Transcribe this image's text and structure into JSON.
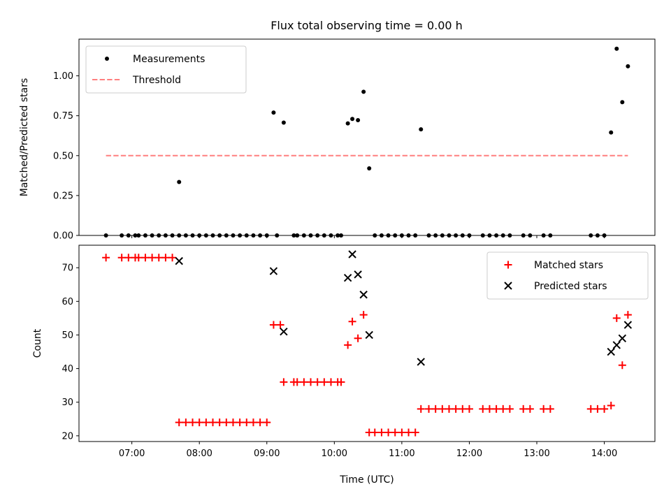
{
  "title": "Flux total observing time = 0.00 h",
  "chart_data": [
    {
      "type": "scatter",
      "ylabel": "Matched/Predicted stars",
      "xlim": [
        "06:13",
        "14:45"
      ],
      "ylim": [
        0,
        1.23
      ],
      "yticks": [
        "0.00",
        "0.25",
        "0.50",
        "0.75",
        "1.00"
      ],
      "legend": {
        "position": "top-left",
        "entries": [
          "Measurements",
          "Threshold"
        ]
      },
      "series": [
        {
          "name": "Measurements",
          "color": "#000000",
          "marker": "dot",
          "points": [
            [
              "06:37",
              0
            ],
            [
              "06:51",
              0
            ],
            [
              "06:57",
              0
            ],
            [
              "07:03",
              0
            ],
            [
              "07:06",
              0
            ],
            [
              "07:12",
              0
            ],
            [
              "07:18",
              0
            ],
            [
              "07:24",
              0
            ],
            [
              "07:30",
              0
            ],
            [
              "07:36",
              0
            ],
            [
              "07:42",
              0
            ],
            [
              "07:42",
              0.335
            ],
            [
              "07:48",
              0
            ],
            [
              "07:54",
              0
            ],
            [
              "08:00",
              0
            ],
            [
              "08:06",
              0
            ],
            [
              "08:12",
              0
            ],
            [
              "08:18",
              0
            ],
            [
              "08:24",
              0
            ],
            [
              "08:30",
              0
            ],
            [
              "08:36",
              0
            ],
            [
              "08:42",
              0
            ],
            [
              "08:48",
              0
            ],
            [
              "08:54",
              0
            ],
            [
              "09:00",
              0
            ],
            [
              "09:06",
              0.77
            ],
            [
              "09:15",
              0.707
            ],
            [
              "09:09",
              0
            ],
            [
              "09:24",
              0
            ],
            [
              "09:27",
              0
            ],
            [
              "09:33",
              0
            ],
            [
              "09:39",
              0
            ],
            [
              "09:45",
              0
            ],
            [
              "09:51",
              0
            ],
            [
              "09:57",
              0
            ],
            [
              "10:03",
              0
            ],
            [
              "10:06",
              0
            ],
            [
              "10:12",
              0.702
            ],
            [
              "10:16",
              0.73
            ],
            [
              "10:21",
              0.722
            ],
            [
              "10:26",
              0.9
            ],
            [
              "10:31",
              0.42
            ],
            [
              "10:36",
              0
            ],
            [
              "10:42",
              0
            ],
            [
              "10:48",
              0
            ],
            [
              "10:54",
              0
            ],
            [
              "11:00",
              0
            ],
            [
              "11:06",
              0
            ],
            [
              "11:12",
              0
            ],
            [
              "11:17",
              0.665
            ],
            [
              "11:24",
              0
            ],
            [
              "11:30",
              0
            ],
            [
              "11:36",
              0
            ],
            [
              "11:42",
              0
            ],
            [
              "11:48",
              0
            ],
            [
              "11:54",
              0
            ],
            [
              "12:00",
              0
            ],
            [
              "12:12",
              0
            ],
            [
              "12:18",
              0
            ],
            [
              "12:24",
              0
            ],
            [
              "12:30",
              0
            ],
            [
              "12:36",
              0
            ],
            [
              "12:48",
              0
            ],
            [
              "12:54",
              0
            ],
            [
              "13:06",
              0
            ],
            [
              "13:12",
              0
            ],
            [
              "13:48",
              0
            ],
            [
              "13:54",
              0
            ],
            [
              "14:00",
              0
            ],
            [
              "14:06",
              0.645
            ],
            [
              "14:11",
              1.17
            ],
            [
              "14:16",
              0.835
            ],
            [
              "14:21",
              1.06
            ]
          ]
        },
        {
          "name": "Threshold",
          "color": "#ff7f7f",
          "style": "dashed",
          "x": [
            "06:37",
            "14:21"
          ],
          "y": [
            0.5,
            0.5
          ]
        }
      ]
    },
    {
      "type": "scatter",
      "xlabel": "Time (UTC)",
      "ylabel": "Count",
      "xlim": [
        "06:13",
        "14:45"
      ],
      "ylim": [
        18.3,
        76.7
      ],
      "xticks": [
        "07:00",
        "08:00",
        "09:00",
        "10:00",
        "11:00",
        "12:00",
        "13:00",
        "14:00"
      ],
      "yticks": [
        "20",
        "30",
        "40",
        "50",
        "60",
        "70"
      ],
      "legend": {
        "position": "top-right",
        "entries": [
          "Matched stars",
          "Predicted stars"
        ]
      },
      "series": [
        {
          "name": "Matched stars",
          "color": "#ff0000",
          "marker": "plus",
          "points": [
            [
              "06:37",
              73
            ],
            [
              "06:51",
              73
            ],
            [
              "06:57",
              73
            ],
            [
              "07:03",
              73
            ],
            [
              "07:06",
              73
            ],
            [
              "07:12",
              73
            ],
            [
              "07:18",
              73
            ],
            [
              "07:24",
              73
            ],
            [
              "07:30",
              73
            ],
            [
              "07:36",
              73
            ],
            [
              "07:42",
              24
            ],
            [
              "07:48",
              24
            ],
            [
              "07:54",
              24
            ],
            [
              "08:00",
              24
            ],
            [
              "08:06",
              24
            ],
            [
              "08:12",
              24
            ],
            [
              "08:18",
              24
            ],
            [
              "08:24",
              24
            ],
            [
              "08:30",
              24
            ],
            [
              "08:36",
              24
            ],
            [
              "08:42",
              24
            ],
            [
              "08:48",
              24
            ],
            [
              "08:54",
              24
            ],
            [
              "09:00",
              24
            ],
            [
              "09:06",
              53
            ],
            [
              "09:12",
              53
            ],
            [
              "09:15",
              36
            ],
            [
              "09:24",
              36
            ],
            [
              "09:27",
              36
            ],
            [
              "09:33",
              36
            ],
            [
              "09:39",
              36
            ],
            [
              "09:45",
              36
            ],
            [
              "09:51",
              36
            ],
            [
              "09:57",
              36
            ],
            [
              "10:03",
              36
            ],
            [
              "10:06",
              36
            ],
            [
              "10:12",
              47
            ],
            [
              "10:16",
              54
            ],
            [
              "10:21",
              49
            ],
            [
              "10:26",
              56
            ],
            [
              "10:31",
              21
            ],
            [
              "10:36",
              21
            ],
            [
              "10:42",
              21
            ],
            [
              "10:48",
              21
            ],
            [
              "10:54",
              21
            ],
            [
              "11:00",
              21
            ],
            [
              "11:06",
              21
            ],
            [
              "11:12",
              21
            ],
            [
              "11:17",
              28
            ],
            [
              "11:24",
              28
            ],
            [
              "11:30",
              28
            ],
            [
              "11:36",
              28
            ],
            [
              "11:42",
              28
            ],
            [
              "11:48",
              28
            ],
            [
              "11:54",
              28
            ],
            [
              "12:00",
              28
            ],
            [
              "12:12",
              28
            ],
            [
              "12:18",
              28
            ],
            [
              "12:24",
              28
            ],
            [
              "12:30",
              28
            ],
            [
              "12:36",
              28
            ],
            [
              "12:48",
              28
            ],
            [
              "12:54",
              28
            ],
            [
              "13:06",
              28
            ],
            [
              "13:12",
              28
            ],
            [
              "13:48",
              28
            ],
            [
              "13:54",
              28
            ],
            [
              "14:00",
              28
            ],
            [
              "14:06",
              29
            ],
            [
              "14:11",
              55
            ],
            [
              "14:16",
              41
            ],
            [
              "14:21",
              56
            ]
          ]
        },
        {
          "name": "Predicted stars",
          "color": "#000000",
          "marker": "x",
          "points": [
            [
              "07:42",
              72
            ],
            [
              "09:06",
              69
            ],
            [
              "09:15",
              51
            ],
            [
              "10:12",
              67
            ],
            [
              "10:16",
              74
            ],
            [
              "10:21",
              68
            ],
            [
              "10:26",
              62
            ],
            [
              "10:31",
              50
            ],
            [
              "11:17",
              42
            ],
            [
              "14:06",
              45
            ],
            [
              "14:11",
              47
            ],
            [
              "14:16",
              49
            ],
            [
              "14:21",
              53
            ]
          ]
        }
      ]
    }
  ]
}
